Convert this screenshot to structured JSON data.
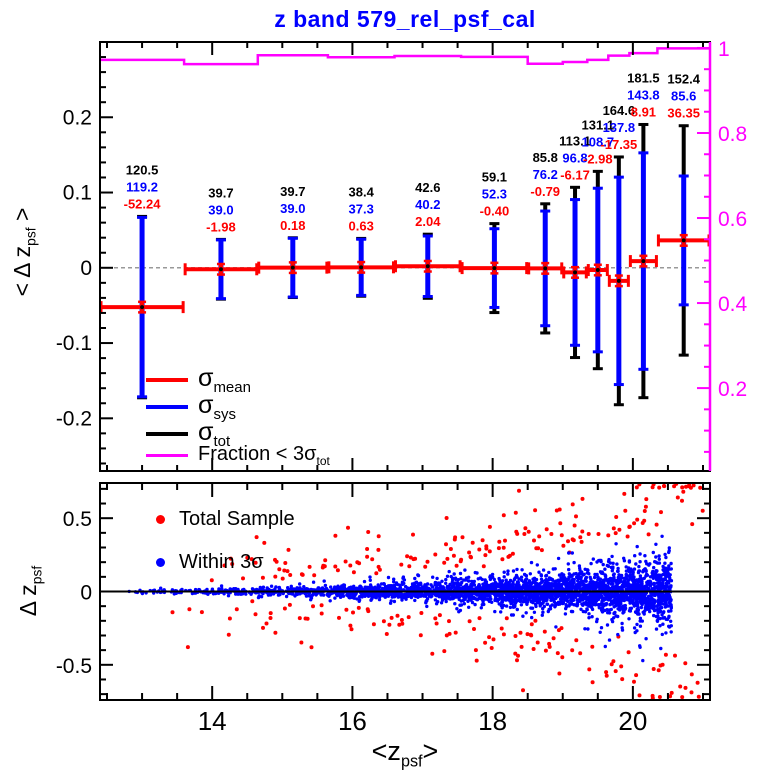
{
  "title": "z band 579_rel_psf_cal",
  "colors": {
    "title": "#0000ff",
    "red": "#ff0000",
    "blue": "#0000ff",
    "magenta": "#ff00ff",
    "black": "#000000",
    "dashed_gray": "#999999"
  },
  "top_axis_title": {
    "main": "< Δ z",
    "sub": "psf",
    "post": " >"
  },
  "bottom_axis_title": {
    "main": "Δ z",
    "sub": "psf",
    "post": ""
  },
  "x_axis_title": {
    "main": "<z",
    "sub": "psf",
    "post": ">"
  },
  "top_legend": [
    {
      "main": "σ",
      "sub": "mean",
      "color": "#ff0000"
    },
    {
      "main": "σ",
      "sub": "sys",
      "color": "#0000ff"
    },
    {
      "main": "σ",
      "sub": "tot",
      "color": "#000000"
    },
    {
      "main": "Fraction < 3σ",
      "sub": "tot",
      "color": "#ff00ff"
    }
  ],
  "bottom_legend": [
    {
      "label": "Total Sample",
      "color": "#ff0000"
    },
    {
      "label": "Within 3σ",
      "color": "#0000ff"
    }
  ],
  "chart_data": [
    {
      "type": "errorbar",
      "title": "z band 579_rel_psf_cal",
      "ylabel": "< Δ z_psf >",
      "ylabel_right": "Fraction < 3σ_tot",
      "xlim": [
        12.4,
        21.1
      ],
      "ylim": [
        -0.27,
        0.3
      ],
      "ylim_right": [
        0.005,
        1.014
      ],
      "yticks": [
        0.2,
        0.1,
        0,
        -0.1,
        -0.2
      ],
      "ytick_labels": [
        "0.2",
        "0.1",
        "0",
        "-0.1",
        "-0.2"
      ],
      "yticks_right": [
        1,
        0.8,
        0.6,
        0.4,
        0.2
      ],
      "ytick_right_labels": [
        "1",
        "0.8",
        "0.6",
        "0.4",
        "0.2"
      ],
      "xticks": [
        14,
        16,
        18,
        20
      ],
      "bin_edges": [
        12.4,
        13.6,
        14.65,
        15.65,
        16.6,
        17.55,
        18.5,
        19.0,
        19.35,
        19.65,
        19.95,
        20.35,
        21.1
      ],
      "mean": [
        -0.05224,
        -0.00198,
        0.00018,
        0.00063,
        0.00204,
        -0.0004,
        -0.00079,
        -0.00617,
        -0.00298,
        -0.01735,
        0.00891,
        0.03635
      ],
      "sigma_sys": [
        0.1192,
        0.039,
        0.039,
        0.0373,
        0.0402,
        0.0523,
        0.0762,
        0.0968,
        0.1087,
        0.1378,
        0.1438,
        0.0856
      ],
      "sigma_tot": [
        0.1205,
        0.0397,
        0.0397,
        0.0384,
        0.0426,
        0.0591,
        0.0858,
        0.1131,
        0.1311,
        0.1646,
        0.1815,
        0.1524
      ],
      "fraction": [
        0.972,
        0.962,
        0.983,
        0.978,
        0.981,
        0.979,
        0.963,
        0.967,
        0.972,
        0.982,
        0.988,
        0.999
      ],
      "labels_tot": [
        "120.5",
        "39.7",
        "39.7",
        "38.4",
        "42.6",
        "59.1",
        "85.8",
        "113.1",
        "131.1",
        "164.6",
        "181.5",
        "152.4"
      ],
      "labels_sys": [
        "119.2",
        "39.0",
        "39.0",
        "37.3",
        "40.2",
        "52.3",
        "76.2",
        "96.8",
        "108.7",
        "137.8",
        "143.8",
        "85.6"
      ],
      "labels_mean": [
        "-52.24",
        "-1.98",
        "0.18",
        "0.63",
        "2.04",
        "-0.40",
        "-0.79",
        "-6.17",
        "-2.98",
        "-17.35",
        "8.91",
        "36.35"
      ],
      "zero_line": 0,
      "legend_position": "bottom-left-inside",
      "grid": false
    },
    {
      "type": "scatter",
      "xlabel": "<z_psf>",
      "ylabel": "Δ z_psf",
      "xlim": [
        12.4,
        21.1
      ],
      "ylim": [
        -0.74,
        0.74
      ],
      "yticks": [
        0.5,
        0,
        -0.5
      ],
      "ytick_labels": [
        "0.5",
        "0",
        "-0.5"
      ],
      "xticks": [
        14,
        16,
        18,
        20
      ],
      "xtick_labels": [
        "14",
        "16",
        "18",
        "20"
      ],
      "zero_line": 0,
      "series": [
        {
          "name": "Total Sample",
          "color": "#ff0000",
          "role": "outliers"
        },
        {
          "name": "Within 3σ",
          "color": "#0000ff",
          "role": "core-cloud"
        }
      ],
      "generation": {
        "seed": 579,
        "n_within": 3400,
        "n_total_outliers": 290,
        "x_min": 12.55,
        "x_max_blue": 20.55,
        "x_max_red": 21.0,
        "x_power_blue": 0.42,
        "x_power_red": 0.5,
        "sigma0": 0.012,
        "sigma_dex_per_mag": 0.16,
        "sigma_ref_mag": 13
      }
    }
  ]
}
